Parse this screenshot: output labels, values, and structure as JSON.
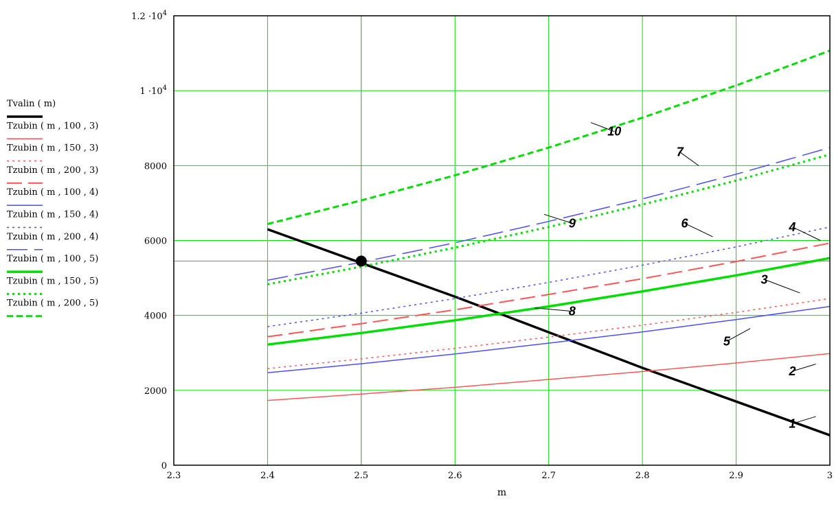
{
  "chart_data": {
    "type": "line",
    "title": "",
    "xlabel": "m",
    "ylabel": "",
    "xlim": [
      2.3,
      3.0
    ],
    "ylim": [
      0,
      12000
    ],
    "x_ticks": [
      "2.3",
      "2.4",
      "2.5",
      "2.6",
      "2.7",
      "2.8",
      "2.9",
      "3"
    ],
    "y_ticks": [
      {
        "value": 0,
        "label": "0"
      },
      {
        "value": 2000,
        "label": "2000"
      },
      {
        "value": 4000,
        "label": "4000"
      },
      {
        "value": 6000,
        "label": "6000"
      },
      {
        "value": 8000,
        "label": "8000"
      },
      {
        "value": 10000,
        "label": "1 ·10",
        "exp": "4"
      },
      {
        "value": 12000,
        "label": "1.2 ·10",
        "exp": "4"
      }
    ],
    "grid": true,
    "grid_color": "#00e000",
    "legend_position": "left",
    "x": [
      2.4,
      2.5,
      2.6,
      2.7,
      2.8,
      2.9,
      3.0
    ],
    "series": [
      {
        "name": "Tvalin ( m)",
        "label": "1",
        "color": "#000000",
        "dash": "solid",
        "width": 3.5,
        "values": [
          6300,
          5400,
          4500,
          3550,
          2600,
          1700,
          800
        ]
      },
      {
        "name": "Tzubin ( m , 100 , 3)",
        "label": "2",
        "color": "#ff5555",
        "dash": "solid",
        "width": 1.5,
        "values": [
          1730,
          1900,
          2080,
          2290,
          2500,
          2730,
          2980
        ]
      },
      {
        "name": "Tzubin ( m , 150 , 3)",
        "label": "3",
        "color": "#ff5555",
        "dash": "dot",
        "width": 1.5,
        "values": [
          2580,
          2840,
          3120,
          3420,
          3740,
          4080,
          4450
        ]
      },
      {
        "name": "Tzubin ( m , 200 , 3)",
        "label": "4",
        "color": "#ff5555",
        "dash": "dash",
        "width": 2,
        "values": [
          3430,
          3780,
          4150,
          4560,
          4980,
          5440,
          5930
        ]
      },
      {
        "name": "Tzubin ( m , 100 , 4)",
        "label": "5",
        "color": "#4d4dff",
        "dash": "solid",
        "width": 1.5,
        "values": [
          2470,
          2710,
          2970,
          3260,
          3560,
          3890,
          4240
        ]
      },
      {
        "name": "Tzubin ( m , 150 , 4)",
        "label": "6",
        "color": "#4d4dff",
        "dash": "dot",
        "width": 1.5,
        "values": [
          3700,
          4060,
          4450,
          4880,
          5340,
          5830,
          6360
        ]
      },
      {
        "name": "Tzubin ( m , 200 , 4)",
        "label": "7",
        "color": "#4d4dff",
        "dash": "longdash",
        "width": 1.5,
        "values": [
          4940,
          5420,
          5940,
          6510,
          7110,
          7770,
          8480
        ]
      },
      {
        "name": "Tzubin ( m , 100 , 5)",
        "label": "8",
        "color": "#00dd00",
        "dash": "solid",
        "width": 3.5,
        "values": [
          3220,
          3530,
          3870,
          4240,
          4640,
          5070,
          5530
        ]
      },
      {
        "name": "Tzubin ( m , 150 , 5)",
        "label": "9",
        "color": "#00dd00",
        "dash": "dot",
        "width": 3,
        "values": [
          4830,
          5300,
          5810,
          6360,
          6960,
          7600,
          8300
        ]
      },
      {
        "name": "Tzubin ( m , 200 , 5)",
        "label": "10",
        "color": "#00dd00",
        "dash": "shortdash",
        "width": 3,
        "values": [
          6440,
          7070,
          7740,
          8480,
          9280,
          10140,
          11070
        ]
      }
    ],
    "marker": {
      "x": 2.5,
      "y": 5450
    },
    "annotations": [
      {
        "text": "1",
        "x": 2.96,
        "y": 1000,
        "ax": 2.985,
        "ay": 1300
      },
      {
        "text": "2",
        "x": 2.96,
        "y": 2400,
        "ax": 2.985,
        "ay": 2700
      },
      {
        "text": "3",
        "x": 2.93,
        "y": 4850,
        "ax": 2.968,
        "ay": 4600
      },
      {
        "text": "4",
        "x": 2.96,
        "y": 6250,
        "ax": 2.99,
        "ay": 6000
      },
      {
        "text": "5",
        "x": 2.89,
        "y": 3200,
        "ax": 2.915,
        "ay": 3650
      },
      {
        "text": "6",
        "x": 2.845,
        "y": 6350,
        "ax": 2.875,
        "ay": 6100
      },
      {
        "text": "7",
        "x": 2.84,
        "y": 8250,
        "ax": 2.86,
        "ay": 8000
      },
      {
        "text": "8",
        "x": 2.725,
        "y": 4000,
        "ax": 2.685,
        "ay": 4200
      },
      {
        "text": "9",
        "x": 2.725,
        "y": 6350,
        "ax": 2.695,
        "ay": 6700
      },
      {
        "text": "10",
        "x": 2.77,
        "y": 8800,
        "ax": 2.745,
        "ay": 9150
      }
    ]
  }
}
